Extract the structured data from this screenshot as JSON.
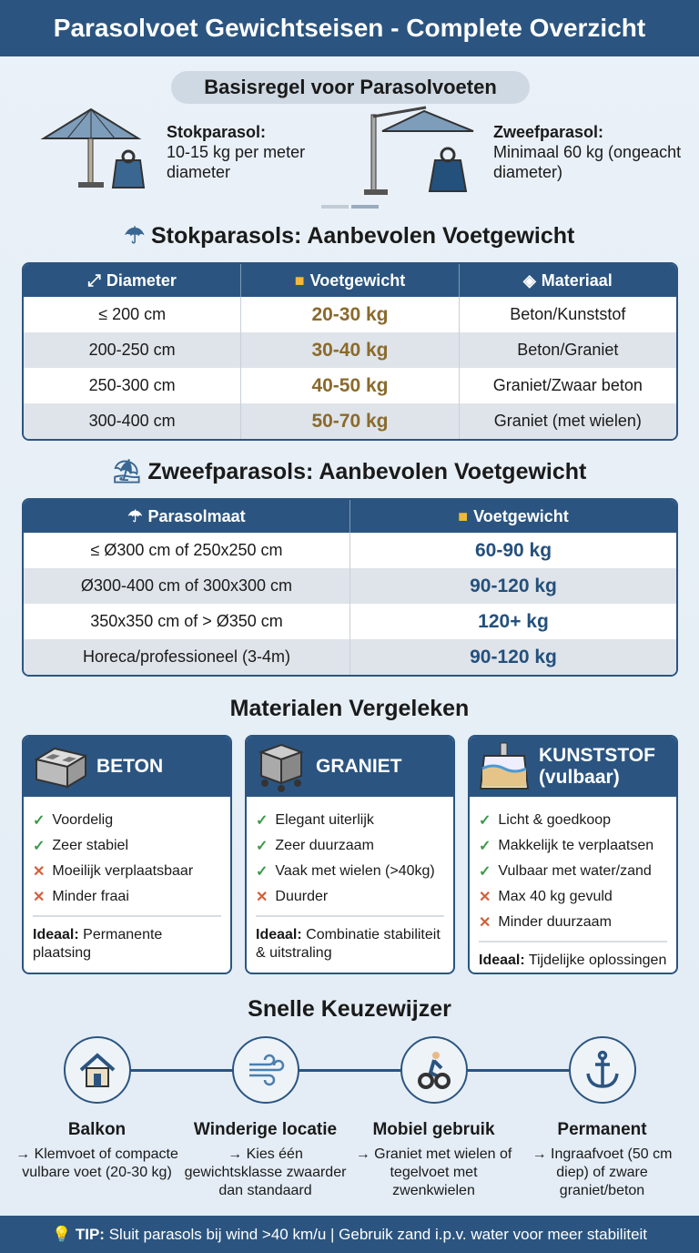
{
  "title": "Parasolvoet Gewichtseisen - Complete Overzicht",
  "basis": {
    "title": "Basisregel voor Parasolvoeten",
    "stok": {
      "label": "Stokparasol:",
      "text": "10-15 kg per meter diameter"
    },
    "zweef": {
      "label": "Zweefparasol:",
      "text": "Minimaal 60 kg (ongeacht diameter)"
    }
  },
  "stok": {
    "heading": "Stokparasols: Aanbevolen Voetgewicht",
    "headers": [
      "Diameter",
      "Voetgewicht",
      "Materiaal"
    ],
    "rows": [
      [
        "≤ 200 cm",
        "20-30 kg",
        "Beton/Kunststof"
      ],
      [
        "200-250 cm",
        "30-40 kg",
        "Beton/Graniet"
      ],
      [
        "250-300 cm",
        "40-50 kg",
        "Graniet/Zwaar beton"
      ],
      [
        "300-400 cm",
        "50-70 kg",
        "Graniet (met wielen)"
      ]
    ]
  },
  "zweef": {
    "heading": "Zweefparasols: Aanbevolen Voetgewicht",
    "headers": [
      "Parasolmaat",
      "Voetgewicht"
    ],
    "rows": [
      [
        "≤ Ø300 cm of 250x250 cm",
        "60-90 kg"
      ],
      [
        "Ø300-400 cm of 300x300 cm",
        "90-120 kg"
      ],
      [
        "350x350 cm of > Ø350 cm",
        "120+ kg"
      ],
      [
        "Horeca/professioneel (3-4m)",
        "90-120 kg"
      ]
    ]
  },
  "materialen": {
    "heading": "Materialen Vergeleken",
    "ideal_label": "Ideaal:",
    "cards": [
      {
        "name": "BETON",
        "items": [
          [
            "ok",
            "Voordelig"
          ],
          [
            "ok",
            "Zeer stabiel"
          ],
          [
            "no",
            "Moeilijk verplaatsbaar"
          ],
          [
            "no",
            "Minder fraai"
          ]
        ],
        "ideal": "Permanente plaatsing"
      },
      {
        "name": "GRANIET",
        "items": [
          [
            "ok",
            "Elegant uiterlijk"
          ],
          [
            "ok",
            "Zeer duurzaam"
          ],
          [
            "ok",
            "Vaak met wielen (>40kg)"
          ],
          [
            "no",
            "Duurder"
          ]
        ],
        "ideal": "Combinatie stabiliteit & uitstraling"
      },
      {
        "name": "KUNSTSTOF (vulbaar)",
        "items": [
          [
            "ok",
            "Licht & goedkoop"
          ],
          [
            "ok",
            "Makkelijk te verplaatsen"
          ],
          [
            "ok",
            "Vulbaar met water/zand"
          ],
          [
            "no",
            "Max 40 kg gevuld"
          ],
          [
            "no",
            "Minder duurzaam"
          ]
        ],
        "ideal": "Tijdelijke oplossingen"
      }
    ]
  },
  "keuze": {
    "heading": "Snelle Keuzewijzer",
    "steps": [
      {
        "title": "Balkon",
        "text": "→ Klemvoet of compacte vulbare voet (20-30 kg)",
        "icon": "house-icon"
      },
      {
        "title": "Winderige locatie",
        "text": "→ Kies één gewichtsklasse zwaarder dan standaard",
        "icon": "wind-icon"
      },
      {
        "title": "Mobiel gebruik",
        "text": "→ Graniet met wielen of tegelvoet met zwenkwielen",
        "icon": "person-wheels-icon"
      },
      {
        "title": "Permanent",
        "text": "→ Ingraafvoet (50 cm diep) of zware graniet/beton",
        "icon": "anchor-icon"
      }
    ]
  },
  "tip": {
    "label": "TIP:",
    "text": "Sluit parasols bij wind >40 km/u | Gebruik zand i.p.v. water voor meer stabiliteit"
  },
  "colors": {
    "primary": "#2b5580",
    "gold": "#8a6a2c",
    "check": "#3d9a4a",
    "cross": "#d0603a"
  }
}
